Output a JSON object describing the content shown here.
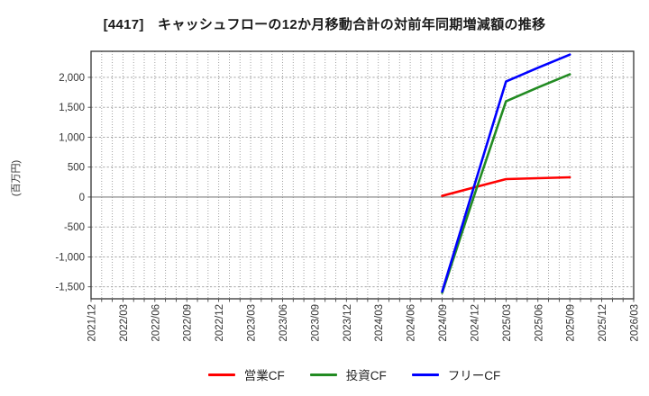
{
  "title": "[4417]　キャッシュフローの12か月移動合計の対前年同期増減額の推移",
  "y_axis_title": "(百万円)",
  "legend": [
    {
      "label": "営業CF",
      "color": "#ff0000"
    },
    {
      "label": "投資CF",
      "color": "#228b22"
    },
    {
      "label": "フリーCF",
      "color": "#0000ff"
    }
  ],
  "chart_data": {
    "type": "line",
    "title": "[4417]　キャッシュフローの12か月移動合計の対前年同期増減額の推移",
    "ylabel": "(百万円)",
    "x_tick_labels": [
      "2021/12",
      "2022/03",
      "2022/06",
      "2022/09",
      "2022/12",
      "2023/03",
      "2023/06",
      "2023/09",
      "2023/12",
      "2024/03",
      "2024/06",
      "2024/09",
      "2024/12",
      "2025/03",
      "2025/06",
      "2025/09",
      "2025/12",
      "2026/03"
    ],
    "x_range_months": [
      "2021/12",
      "2026/03"
    ],
    "yticks": [
      -1500,
      -1000,
      -500,
      0,
      500,
      1000,
      1500,
      2000
    ],
    "ytick_labels": [
      "-1,500",
      "-1,000",
      "-500",
      "0",
      "500",
      "1,000",
      "1,500",
      "2,000"
    ],
    "ylim": [
      -1700,
      2435
    ],
    "grid": {
      "vertical": "monthly dotted",
      "horizontal": "dashed every 500",
      "zero_line": "solid"
    },
    "legend_position": "bottom center",
    "series": [
      {
        "name": "営業CF",
        "color": "#ff0000",
        "x": [
          "2024/09",
          "2024/12",
          "2025/03",
          "2025/06",
          "2025/09"
        ],
        "values": [
          20,
          160,
          300,
          315,
          330
        ]
      },
      {
        "name": "投資CF",
        "color": "#228b22",
        "x": [
          "2024/09",
          "2024/12",
          "2025/03",
          "2025/06",
          "2025/09"
        ],
        "values": [
          -1600,
          20,
          1600,
          1830,
          2050
        ]
      },
      {
        "name": "フリーCF",
        "color": "#0000ff",
        "x": [
          "2024/09",
          "2024/12",
          "2025/03",
          "2025/06",
          "2025/09"
        ],
        "values": [
          -1580,
          180,
          1930,
          2160,
          2380
        ]
      }
    ]
  },
  "colors": {
    "grid": "#999999",
    "zero_line": "#808080",
    "border": "#333333",
    "tick_label": "#333333"
  }
}
